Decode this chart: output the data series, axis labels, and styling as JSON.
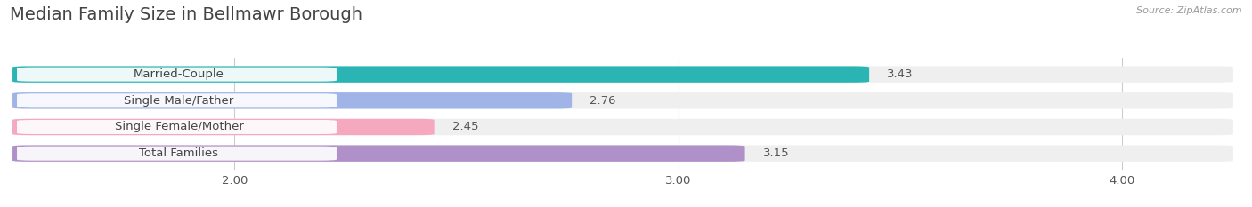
{
  "title": "Median Family Size in Bellmawr Borough",
  "source": "Source: ZipAtlas.com",
  "categories": [
    "Married-Couple",
    "Single Male/Father",
    "Single Female/Mother",
    "Total Families"
  ],
  "values": [
    3.43,
    2.76,
    2.45,
    3.15
  ],
  "bar_colors": [
    "#2ab5b4",
    "#a0b4e8",
    "#f5a8c0",
    "#b090c8"
  ],
  "bar_bg_colors": [
    "#efefef",
    "#efefef",
    "#efefef",
    "#efefef"
  ],
  "xmin": 1.5,
  "xmax": 4.25,
  "xticks": [
    2.0,
    3.0,
    4.0
  ],
  "xtick_labels": [
    "2.00",
    "3.00",
    "4.00"
  ],
  "title_fontsize": 14,
  "label_fontsize": 9.5,
  "value_fontsize": 9.5,
  "bar_height": 0.62,
  "figsize": [
    14.06,
    2.33
  ],
  "dpi": 100,
  "background_color": "#ffffff",
  "grid_color": "#cccccc",
  "text_color": "#555555",
  "title_color": "#444444",
  "source_color": "#999999"
}
